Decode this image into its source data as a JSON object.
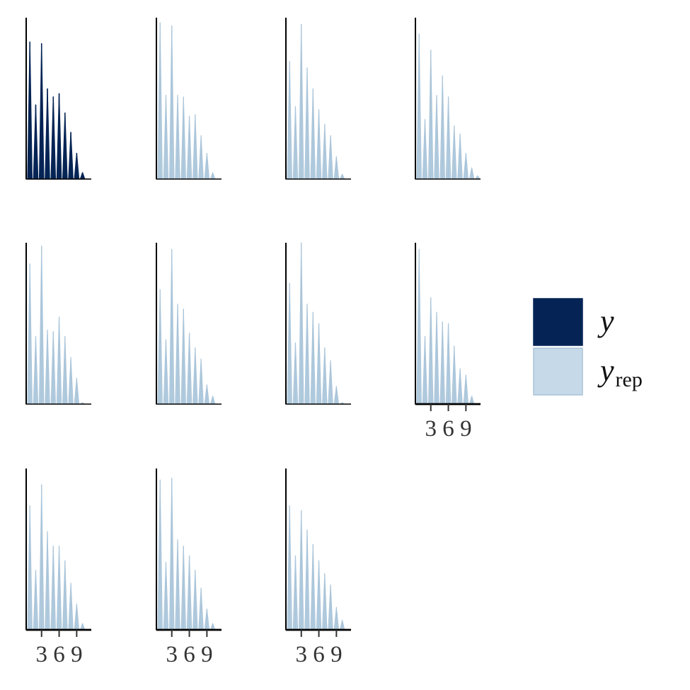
{
  "chart_data": {
    "type": "area",
    "xlim": [
      1,
      12
    ],
    "x_ticks": [
      "3",
      "6",
      "9"
    ],
    "x": [
      1,
      2,
      3,
      4,
      5,
      6,
      7,
      8,
      9,
      10,
      11
    ],
    "legend": {
      "placement": "right",
      "items": [
        {
          "symbol": "y",
          "subscript": "",
          "fill": "#052455",
          "stroke": "#052455"
        },
        {
          "symbol": "y",
          "subscript": "rep",
          "fill": "#c6d9e8",
          "stroke": "#a8c3d8"
        }
      ]
    },
    "colors": {
      "y": "#052455",
      "y_rep": "#aac5da",
      "axis": "#000000"
    },
    "panels": [
      {
        "series": "y",
        "values": [
          0.85,
          0.46,
          0.84,
          0.56,
          0.51,
          0.53,
          0.41,
          0.29,
          0.16,
          0.04,
          0
        ]
      },
      {
        "series": "y_rep",
        "values": [
          0.97,
          0.52,
          0.95,
          0.52,
          0.51,
          0.39,
          0.4,
          0.27,
          0.16,
          0.04,
          0
        ]
      },
      {
        "series": "y_rep",
        "values": [
          0.73,
          0.45,
          0.96,
          0.69,
          0.56,
          0.43,
          0.34,
          0.27,
          0.14,
          0.03,
          0
        ]
      },
      {
        "series": "y_rep",
        "values": [
          0.9,
          0.37,
          0.8,
          0.52,
          0.64,
          0.51,
          0.33,
          0.28,
          0.16,
          0.07,
          0.02
        ]
      },
      {
        "series": "y_rep",
        "values": [
          0.87,
          0.42,
          0.98,
          0.46,
          0.45,
          0.54,
          0.42,
          0.29,
          0.16,
          0.01,
          0
        ]
      },
      {
        "series": "y_rep",
        "values": [
          0.71,
          0.4,
          0.96,
          0.62,
          0.59,
          0.44,
          0.35,
          0.28,
          0.12,
          0.05,
          0
        ]
      },
      {
        "series": "y_rep",
        "values": [
          0.75,
          0.38,
          1.0,
          0.62,
          0.57,
          0.5,
          0.35,
          0.27,
          0.11,
          0.01,
          0
        ]
      },
      {
        "series": "y_rep",
        "values": [
          0.96,
          0.42,
          0.66,
          0.57,
          0.51,
          0.5,
          0.36,
          0.22,
          0.18,
          0.05,
          0
        ]
      },
      {
        "series": "y_rep",
        "values": [
          0.77,
          0.37,
          0.9,
          0.61,
          0.52,
          0.52,
          0.43,
          0.29,
          0.16,
          0.04,
          0
        ]
      },
      {
        "series": "y_rep",
        "values": [
          0.93,
          0.42,
          0.94,
          0.56,
          0.52,
          0.46,
          0.37,
          0.26,
          0.13,
          0.04,
          0
        ]
      },
      {
        "series": "y_rep",
        "values": [
          0.77,
          0.46,
          0.74,
          0.62,
          0.53,
          0.43,
          0.35,
          0.28,
          0.14,
          0.06,
          0
        ]
      }
    ]
  }
}
